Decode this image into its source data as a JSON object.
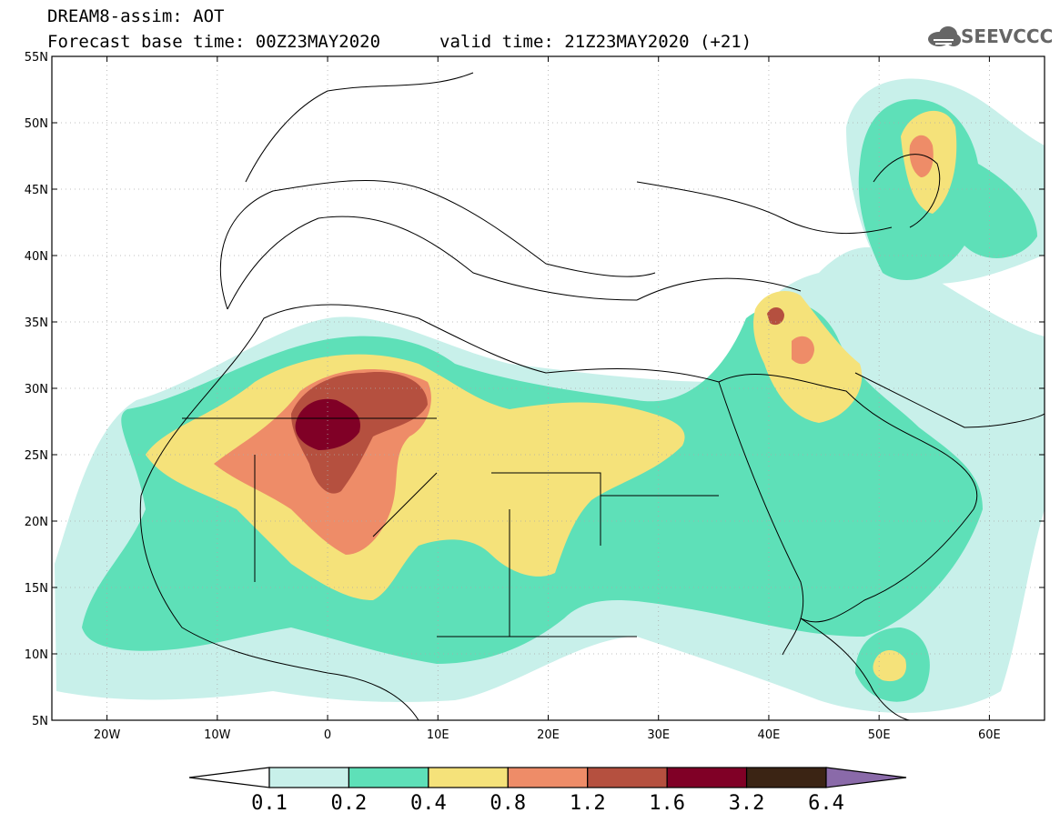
{
  "title": {
    "line1": "DREAM8-assim: AOT",
    "line2": "Forecast base time: 00Z23MAY2020",
    "line3": "valid time: 21Z23MAY2020 (+21)"
  },
  "logo": {
    "text": "SEEVCCC",
    "icon": "cloud-icon"
  },
  "map": {
    "lon_range": [
      -25,
      65
    ],
    "lat_range": [
      5,
      55
    ],
    "lat_ticks": [
      "55N",
      "50N",
      "45N",
      "40N",
      "35N",
      "30N",
      "25N",
      "20N",
      "15N",
      "10N",
      "5N"
    ],
    "lon_ticks": [
      "20W",
      "10W",
      "0",
      "10E",
      "20E",
      "30E",
      "40E",
      "50E",
      "60E"
    ],
    "grid": true
  },
  "colorbar": {
    "labels": [
      "0.1",
      "0.2",
      "0.4",
      "0.8",
      "1.2",
      "1.6",
      "3.2",
      "6.4"
    ],
    "colors": [
      "#c8f0ea",
      "#5ee0b8",
      "#f5e27a",
      "#ee8c68",
      "#b5503f",
      "#800026",
      "#3b2414",
      "#8a6aa9"
    ]
  }
}
